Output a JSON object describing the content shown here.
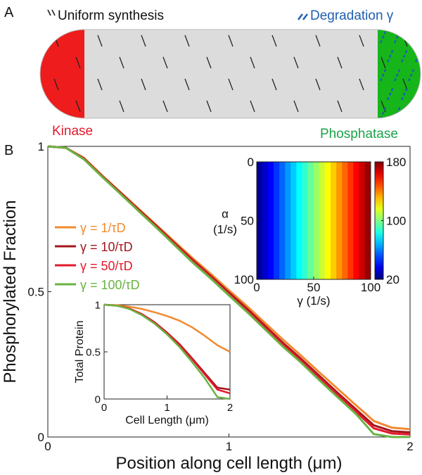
{
  "panel_a": {
    "label": "A",
    "synthesis_legend": "Uniform synthesis",
    "degradation_legend": "Degradation γ",
    "left_pole": "Kinase",
    "right_pole": "Phosphatase"
  },
  "chart_data": [
    {
      "type": "line",
      "panel_label": "B",
      "xlabel": "Position along cell length (μm)",
      "ylabel": "Phosphorylated Fraction",
      "x": [
        0,
        0.1,
        0.2,
        0.3,
        0.4,
        0.5,
        0.6,
        0.7,
        0.8,
        0.9,
        1,
        1.1,
        1.2,
        1.3,
        1.4,
        1.5,
        1.6,
        1.7,
        1.8,
        1.9,
        2
      ],
      "series": [
        {
          "name": "γ = 1/τD",
          "color": "#f28a30",
          "values": [
            1,
            0.995,
            0.96,
            0.9,
            0.843,
            0.786,
            0.729,
            0.672,
            0.615,
            0.561,
            0.505,
            0.45,
            0.392,
            0.334,
            0.279,
            0.222,
            0.166,
            0.11,
            0.055,
            0.032,
            0.027
          ]
        },
        {
          "name": "γ = 10/τD",
          "color": "#a3151c",
          "values": [
            1,
            0.995,
            0.958,
            0.898,
            0.841,
            0.783,
            0.726,
            0.667,
            0.609,
            0.554,
            0.497,
            0.441,
            0.382,
            0.323,
            0.268,
            0.21,
            0.152,
            0.096,
            0.04,
            0.02,
            0.016
          ]
        },
        {
          "name": "γ = 50/τD",
          "color": "#e31a2c",
          "values": [
            1,
            0.995,
            0.957,
            0.897,
            0.839,
            0.781,
            0.723,
            0.664,
            0.605,
            0.55,
            0.492,
            0.435,
            0.376,
            0.317,
            0.262,
            0.203,
            0.145,
            0.088,
            0.03,
            0.012,
            0.009
          ]
        },
        {
          "name": "γ = 100/τD",
          "color": "#6ab343",
          "values": [
            1,
            0.995,
            0.955,
            0.895,
            0.837,
            0.778,
            0.72,
            0.66,
            0.6,
            0.545,
            0.487,
            0.43,
            0.37,
            0.31,
            0.255,
            0.195,
            0.137,
            0.08,
            0.01,
            0,
            0
          ]
        }
      ],
      "xlim": [
        0,
        2
      ],
      "ylim": [
        0,
        1
      ],
      "xticks": [
        0,
        1,
        2
      ],
      "yticks": [
        0,
        0.5,
        1
      ],
      "legend": "left"
    },
    {
      "type": "line",
      "xlabel": "Cell Length (μm)",
      "ylabel": "Total Protein",
      "x": [
        0,
        0.2,
        0.4,
        0.6,
        0.8,
        1,
        1.2,
        1.4,
        1.6,
        1.8,
        2
      ],
      "series": [
        {
          "color": "#f28a30",
          "values": [
            1,
            0.995,
            0.98,
            0.955,
            0.92,
            0.88,
            0.83,
            0.76,
            0.67,
            0.57,
            0.5
          ]
        },
        {
          "color": "#a3151c",
          "values": [
            1,
            0.99,
            0.96,
            0.9,
            0.815,
            0.705,
            0.58,
            0.43,
            0.275,
            0.12,
            0.1
          ]
        },
        {
          "color": "#e31a2c",
          "values": [
            1,
            0.99,
            0.96,
            0.9,
            0.81,
            0.7,
            0.57,
            0.42,
            0.26,
            0.1,
            0.06
          ]
        },
        {
          "color": "#6ab343",
          "values": [
            1,
            0.99,
            0.955,
            0.89,
            0.8,
            0.685,
            0.55,
            0.39,
            0.22,
            0.02,
            0
          ]
        }
      ],
      "xlim": [
        0,
        2
      ],
      "ylim": [
        0,
        1
      ],
      "xticks": [
        0,
        1,
        2
      ],
      "yticks": [
        0,
        0.5,
        1
      ]
    },
    {
      "type": "heatmap",
      "xlabel": "γ (1/s)",
      "ylabel": [
        "α",
        "(1/s)"
      ],
      "x": [
        2.5,
        7.5,
        12.5,
        17.5,
        22.5,
        27.5,
        32.5,
        37.5,
        42.5,
        47.5,
        52.5,
        57.5,
        62.5,
        67.5,
        72.5,
        77.5,
        82.5,
        87.5,
        92.5,
        97.5
      ],
      "values": [
        24,
        32,
        40,
        48,
        56,
        64,
        72,
        80,
        88,
        96,
        104,
        112,
        120,
        128,
        136,
        144,
        152,
        160,
        168,
        176
      ],
      "xlim": [
        0,
        100
      ],
      "ylim": [
        0,
        100
      ],
      "y_inverted": true,
      "xticks": [
        0,
        50,
        100
      ],
      "yticks": [
        0,
        50,
        100
      ],
      "colormap": "jet",
      "clim": [
        20,
        180
      ],
      "cticks": [
        20,
        100,
        180
      ]
    }
  ]
}
